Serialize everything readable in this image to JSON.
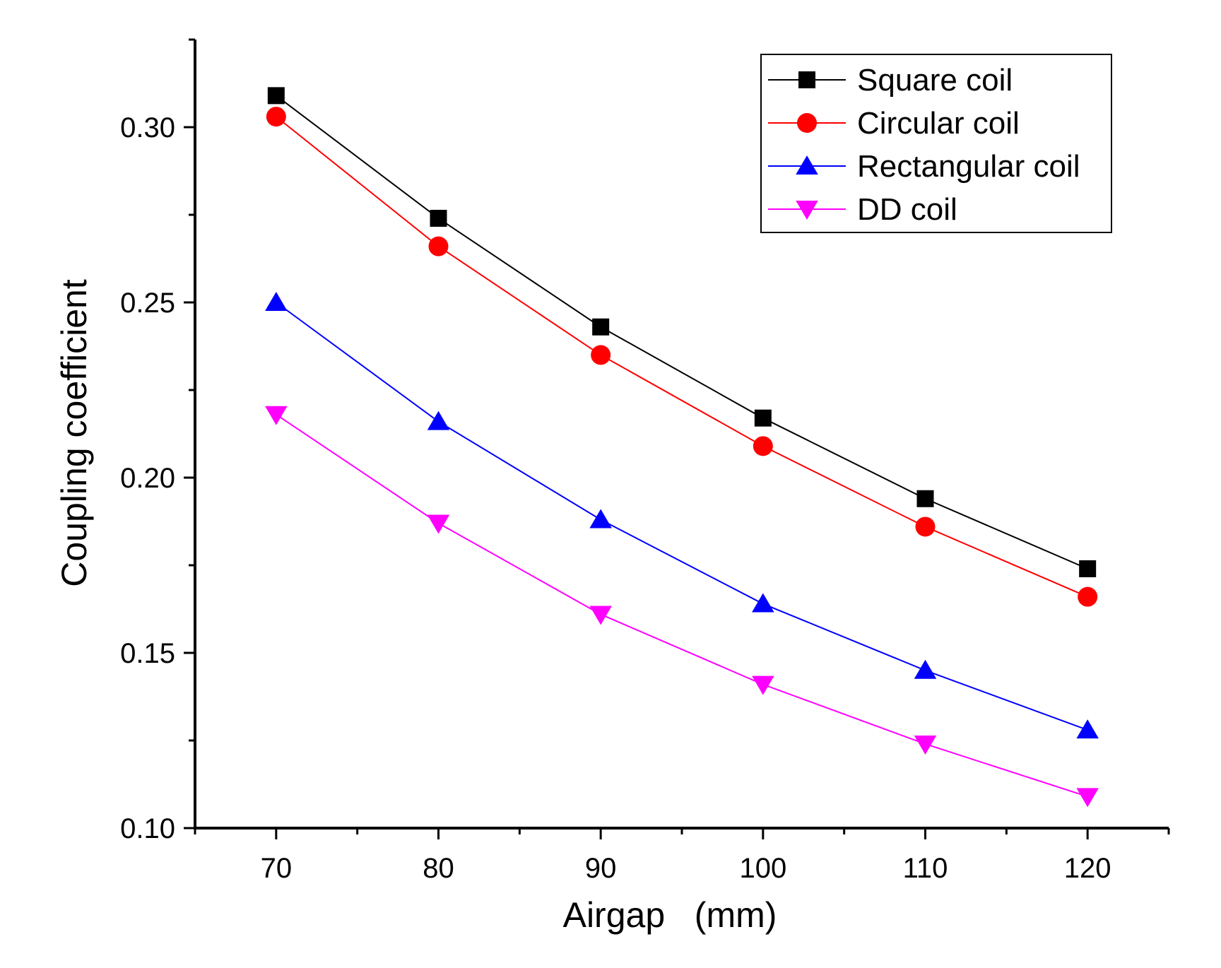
{
  "chart_data": {
    "type": "line",
    "title": "",
    "xlabel": "Airgap   (mm)",
    "ylabel": "Coupling coefficient",
    "x": [
      70,
      80,
      90,
      100,
      110,
      120
    ],
    "x_ticks": [
      "70",
      "80",
      "90",
      "100",
      "110",
      "120"
    ],
    "y_ticks": [
      "0.10",
      "0.15",
      "0.20",
      "0.25",
      "0.30"
    ],
    "xlim": [
      65,
      125
    ],
    "ylim": [
      0.1,
      0.325
    ],
    "grid": false,
    "legend_position": "top-right",
    "series": [
      {
        "name": "Square coil",
        "values": [
          0.309,
          0.274,
          0.243,
          0.217,
          0.194,
          0.174
        ],
        "color": "#000000",
        "marker": "square"
      },
      {
        "name": "Circular coil",
        "values": [
          0.303,
          0.266,
          0.235,
          0.209,
          0.186,
          0.166
        ],
        "color": "#ff0000",
        "marker": "circle"
      },
      {
        "name": "Rectangular coil",
        "values": [
          0.25,
          0.216,
          0.188,
          0.164,
          0.145,
          0.128
        ],
        "color": "#0000ff",
        "marker": "triangle-up"
      },
      {
        "name": "DD coil",
        "values": [
          0.218,
          0.187,
          0.161,
          0.141,
          0.124,
          0.109
        ],
        "color": "#ff00ff",
        "marker": "triangle-down"
      }
    ]
  }
}
